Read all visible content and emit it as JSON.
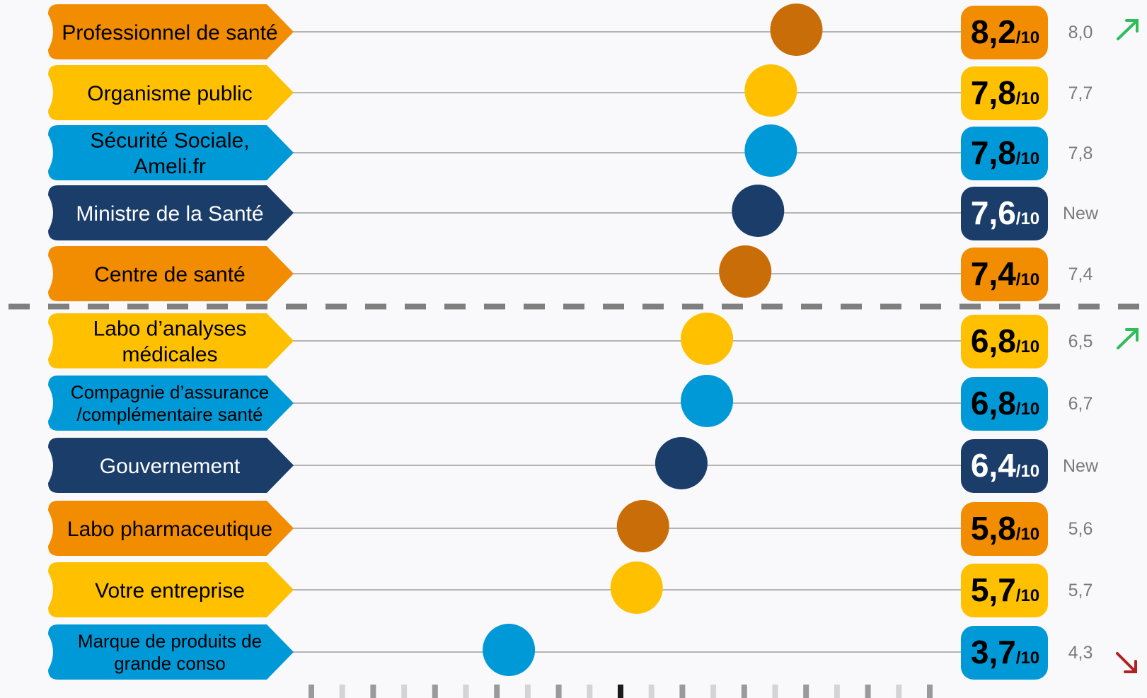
{
  "chart_data": {
    "type": "dot",
    "xlim": [
      0,
      10
    ],
    "score_suffix": "/10",
    "colors": {
      "dark_orange": "#c96d08",
      "orange": "#f28c00",
      "yellow": "#ffc000",
      "blue": "#0099d8",
      "navy": "#1a3d6a",
      "up_arrow": "#2ebd59",
      "down_arrow": "#b22222",
      "line": "#9e9e9e",
      "separator": "#7f7f7f"
    },
    "rows": [
      {
        "label_lines": [
          "Professionnel de santé"
        ],
        "value": 8.2,
        "score": "8,2",
        "previous": "8,0",
        "color": "orange",
        "dot_color": "dark_orange",
        "text_color": "#000000",
        "trend": "up"
      },
      {
        "label_lines": [
          "Organisme public"
        ],
        "value": 7.8,
        "score": "7,8",
        "previous": "7,7",
        "color": "yellow",
        "dot_color": "yellow",
        "text_color": "#000000",
        "trend": ""
      },
      {
        "label_lines": [
          "Sécurité Sociale,",
          "Ameli.fr"
        ],
        "value": 7.8,
        "score": "7,8",
        "previous": "7,8",
        "color": "blue",
        "dot_color": "blue",
        "text_color": "#000000",
        "trend": ""
      },
      {
        "label_lines": [
          "Ministre de la Santé"
        ],
        "value": 7.6,
        "score": "7,6",
        "previous": "New",
        "color": "navy",
        "dot_color": "navy",
        "text_color": "#ffffff",
        "trend": ""
      },
      {
        "label_lines": [
          "Centre de santé"
        ],
        "value": 7.4,
        "score": "7,4",
        "previous": "7,4",
        "color": "orange",
        "dot_color": "dark_orange",
        "text_color": "#000000",
        "trend": ""
      },
      {
        "label_lines": [
          "Labo d’analyses",
          "médicales"
        ],
        "value": 6.8,
        "score": "6,8",
        "previous": "6,5",
        "color": "yellow",
        "dot_color": "yellow",
        "text_color": "#000000",
        "trend": "up"
      },
      {
        "label_lines": [
          "Compagnie d’assurance",
          "/complémentaire santé"
        ],
        "value": 6.8,
        "score": "6,8",
        "previous": "6,7",
        "color": "blue",
        "dot_color": "blue",
        "text_color": "#000000",
        "trend": ""
      },
      {
        "label_lines": [
          "Gouvernement"
        ],
        "value": 6.4,
        "score": "6,4",
        "previous": "New",
        "color": "navy",
        "dot_color": "navy",
        "text_color": "#ffffff",
        "trend": ""
      },
      {
        "label_lines": [
          "Labo pharmaceutique"
        ],
        "value": 5.8,
        "score": "5,8",
        "previous": "5,6",
        "color": "orange",
        "dot_color": "dark_orange",
        "text_color": "#000000",
        "trend": ""
      },
      {
        "label_lines": [
          "Votre entreprise"
        ],
        "value": 5.7,
        "score": "5,7",
        "previous": "5,7",
        "color": "yellow",
        "dot_color": "yellow",
        "text_color": "#000000",
        "trend": ""
      },
      {
        "label_lines": [
          "Marque de produits de",
          "grande conso"
        ],
        "value": 3.7,
        "score": "3,7",
        "previous": "4,3",
        "color": "blue",
        "dot_color": "blue",
        "text_color": "#000000",
        "trend": "down"
      }
    ],
    "separator_after_index": 4,
    "bottom_scale_ticks": 21
  }
}
